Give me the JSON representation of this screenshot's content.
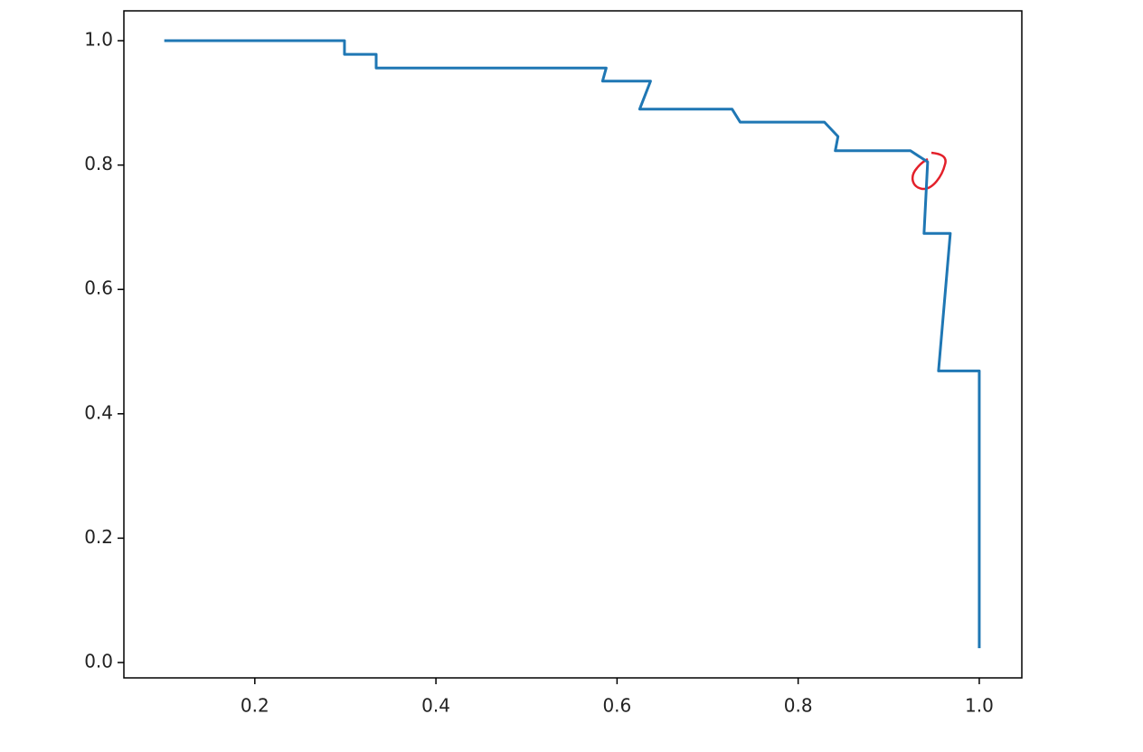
{
  "chart_data": {
    "type": "line",
    "x": [
      0.1,
      0.299,
      0.299,
      0.334,
      0.334,
      0.588,
      0.584,
      0.637,
      0.625,
      0.727,
      0.736,
      0.829,
      0.844,
      0.841,
      0.924,
      0.943,
      0.939,
      0.968,
      0.955,
      1.0,
      1.0
    ],
    "series": [
      {
        "color": "#1f77b4",
        "values": [
          1.0,
          1.0,
          0.978,
          0.978,
          0.956,
          0.956,
          0.935,
          0.935,
          0.89,
          0.89,
          0.869,
          0.869,
          0.846,
          0.823,
          0.823,
          0.805,
          0.69,
          0.69,
          0.469,
          0.469,
          0.023
        ]
      }
    ],
    "xlim": [
      0.0554,
      1.047
    ],
    "ylim": [
      -0.0247,
      1.048
    ],
    "xticks": [
      0.2,
      0.4,
      0.6,
      0.8,
      {
        "value": 1,
        "label": "1.0"
      }
    ],
    "yticks": [
      {
        "value": 0,
        "label": "0.0"
      },
      0.2,
      0.4,
      0.6,
      0.8,
      {
        "value": 1,
        "label": "1.0"
      }
    ],
    "grid": false
  }
}
